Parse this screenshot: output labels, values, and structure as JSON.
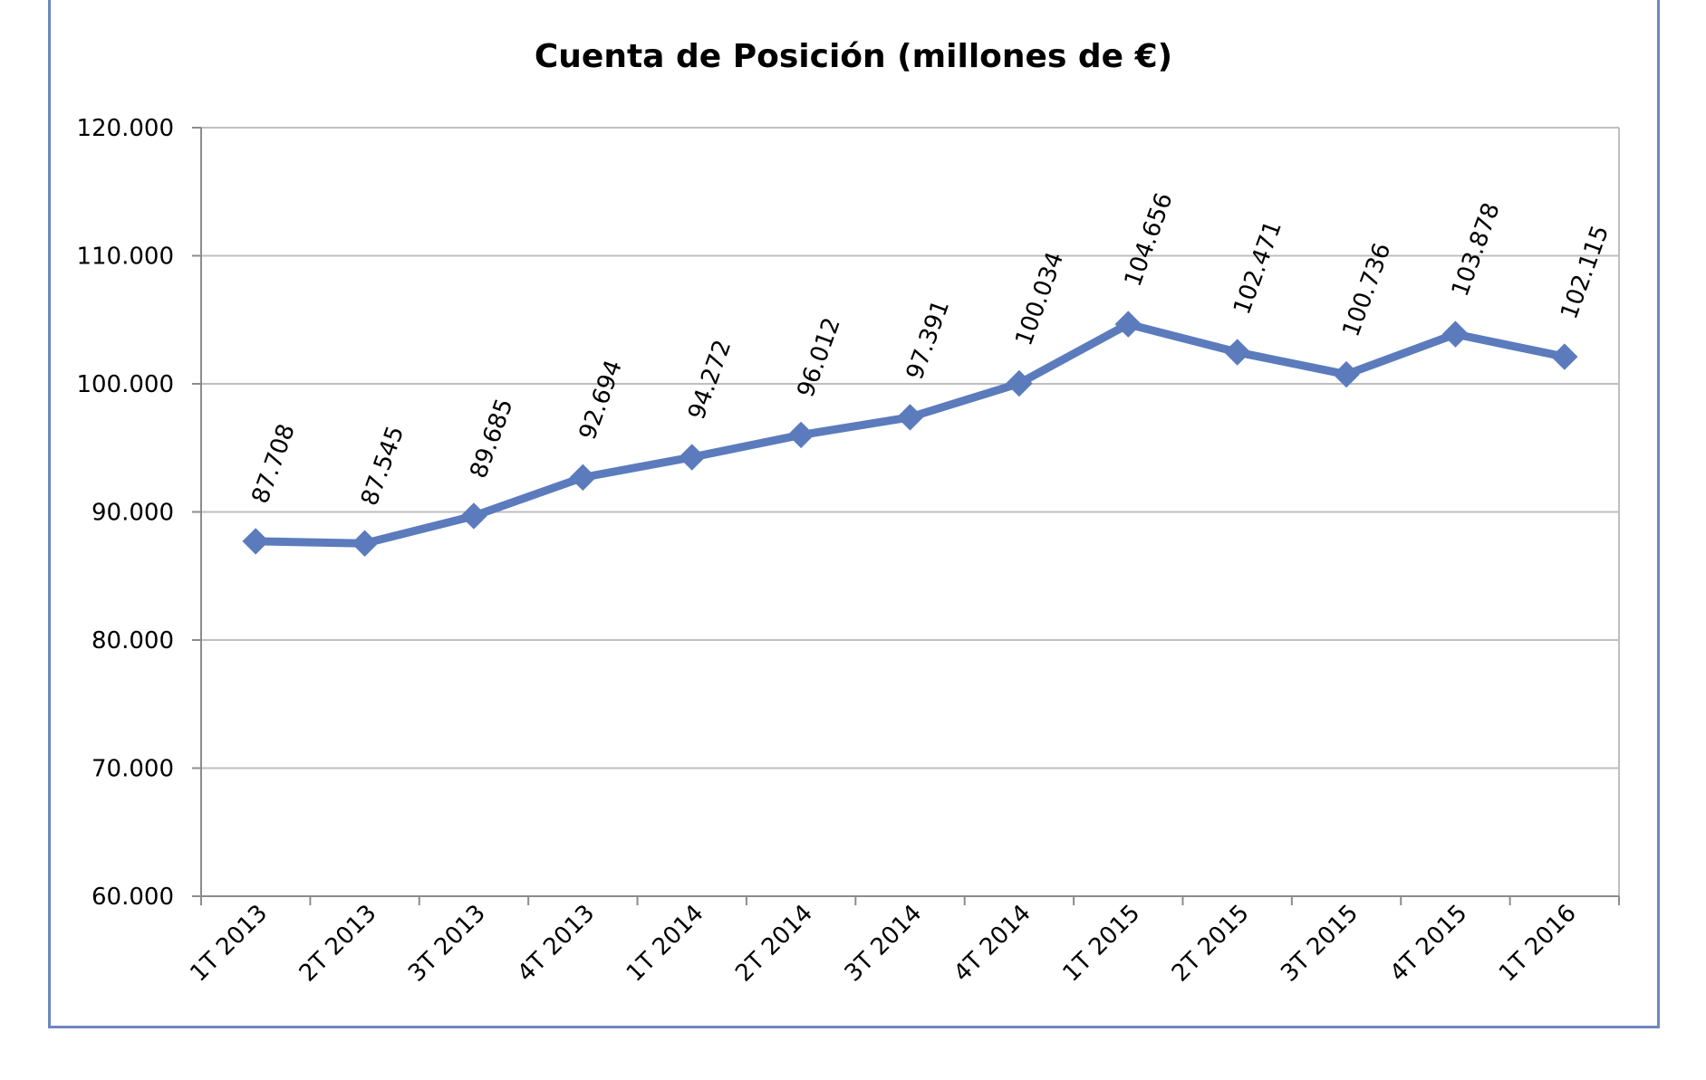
{
  "chart_data": {
    "type": "line",
    "title": "Cuenta de Posición (millones de €)",
    "xlabel": "",
    "ylabel": "",
    "categories": [
      "1T 2013",
      "2T 2013",
      "3T 2013",
      "4T 2013",
      "1T 2014",
      "2T 2014",
      "3T 2014",
      "4T 2014",
      "1T 2015",
      "2T 2015",
      "3T 2015",
      "4T 2015",
      "1T 2016"
    ],
    "series": [
      {
        "values": [
          87708,
          87545,
          89685,
          92694,
          94272,
          96012,
          97391,
          100034,
          104656,
          102471,
          100736,
          103878,
          102115
        ],
        "value_labels": [
          "87.708",
          "87.545",
          "89.685",
          "92.694",
          "94.272",
          "96.012",
          "97.391",
          "100.034",
          "104.656",
          "102.471",
          "100.736",
          "103.878",
          "102.115"
        ],
        "color": "#5b7bbd",
        "marker": "diamond"
      }
    ],
    "ylim": [
      60000,
      120000
    ],
    "yticks": [
      60000,
      70000,
      80000,
      90000,
      100000,
      110000,
      120000
    ],
    "ytick_labels": [
      "60.000",
      "70.000",
      "80.000",
      "90.000",
      "100.000",
      "110.000",
      "120.000"
    ],
    "grid": true,
    "legend": "none",
    "colors": {
      "line": "#5b7bbd",
      "grid": "#bfbfbf",
      "axis": "#8c8c8c",
      "frame": "#6f86c2"
    }
  }
}
